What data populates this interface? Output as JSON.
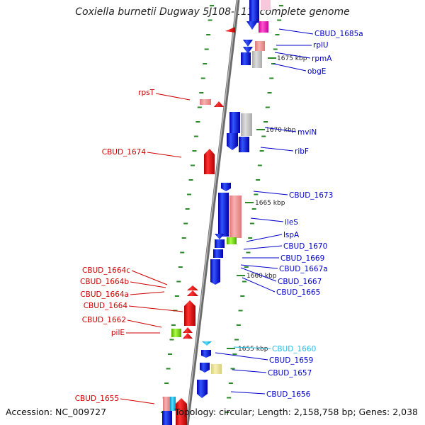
{
  "title": "Coxiella burnetii Dugway 5J108-111, complete genome",
  "footer": {
    "accession": "Accession: NC_009727",
    "summary": "Topology: circular; Length: 2,158,758 bp; Genes: 2,038"
  },
  "colors": {
    "backbone": "#808080",
    "forward_label": "#0000cc",
    "reverse_label": "#cc0000",
    "highlight_label": "#1fbde6",
    "tick": "#2a8a2a"
  },
  "kbp_markers": [
    "1675 kbp",
    "1670 kbp",
    "1665 kbp",
    "1660 kbp",
    "1655 kbp"
  ],
  "genes_right": [
    {
      "label": "CBUD_1685a",
      "color": "#0000cc"
    },
    {
      "label": "rplU",
      "color": "#0000cc"
    },
    {
      "label": "rpmA",
      "color": "#0000cc"
    },
    {
      "label": "obgE",
      "color": "#0000cc"
    },
    {
      "label": "mviN",
      "color": "#0000cc"
    },
    {
      "label": "ribF",
      "color": "#0000cc"
    },
    {
      "label": "CBUD_1673",
      "color": "#0000cc"
    },
    {
      "label": "ileS",
      "color": "#0000cc"
    },
    {
      "label": "lspA",
      "color": "#0000cc"
    },
    {
      "label": "CBUD_1670",
      "color": "#0000cc"
    },
    {
      "label": "CBUD_1669",
      "color": "#0000cc"
    },
    {
      "label": "CBUD_1667a",
      "color": "#0000cc"
    },
    {
      "label": "CBUD_1667",
      "color": "#0000cc"
    },
    {
      "label": "CBUD_1665",
      "color": "#0000cc"
    },
    {
      "label": "CBUD_1660",
      "color": "#1fbde6"
    },
    {
      "label": "CBUD_1659",
      "color": "#0000cc"
    },
    {
      "label": "CBUD_1657",
      "color": "#0000cc"
    },
    {
      "label": "CBUD_1656",
      "color": "#0000cc"
    }
  ],
  "genes_left": [
    {
      "label": "rpsT"
    },
    {
      "label": "CBUD_1674"
    },
    {
      "label": "CBUD_1664c"
    },
    {
      "label": "CBUD_1664b"
    },
    {
      "label": "CBUD_1664a"
    },
    {
      "label": "CBUD_1664"
    },
    {
      "label": "CBUD_1662"
    },
    {
      "label": "pilE"
    },
    {
      "label": "CBUD_1655"
    }
  ]
}
